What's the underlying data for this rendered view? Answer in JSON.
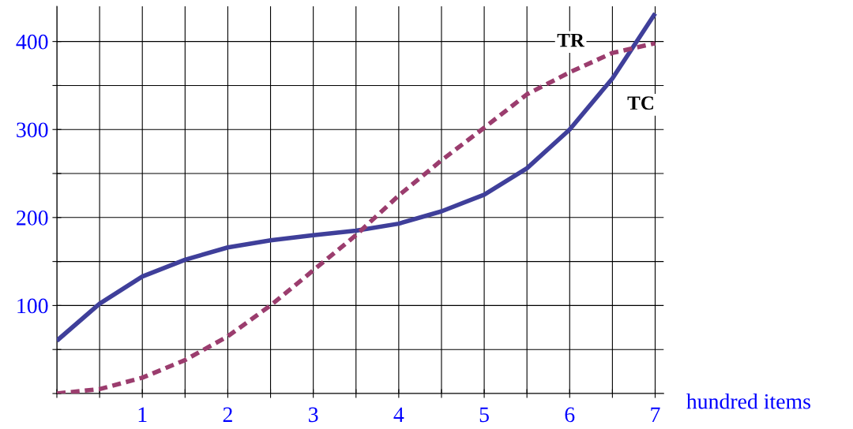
{
  "chart_data": {
    "type": "line",
    "xlabel": "hundred items",
    "x": [
      0,
      0.5,
      1,
      1.5,
      2,
      2.5,
      3,
      3.5,
      4,
      4.5,
      5,
      5.5,
      6,
      6.5,
      7
    ],
    "series": [
      {
        "name": "TC",
        "color": "#3f3f9a",
        "line_style": "solid",
        "values": [
          60,
          102,
          133,
          152,
          166,
          174,
          180,
          185,
          193,
          207,
          226,
          256,
          300,
          358,
          432
        ]
      },
      {
        "name": "TR",
        "color": "#9b3d6e",
        "line_style": "dashed",
        "values": [
          0,
          5,
          18,
          38,
          65,
          100,
          140,
          180,
          225,
          265,
          302,
          340,
          365,
          387,
          398
        ]
      }
    ],
    "xlim": [
      0,
      7.1
    ],
    "ylim": [
      0,
      440
    ],
    "xticks": [
      {
        "value": 0,
        "label": null
      },
      {
        "value": 0.5,
        "label": null
      },
      1,
      {
        "value": 1.5,
        "label": null
      },
      2,
      {
        "value": 2.5,
        "label": null
      },
      3,
      {
        "value": 3.5,
        "label": null
      },
      4,
      {
        "value": 4.5,
        "label": null
      },
      5,
      {
        "value": 5.5,
        "label": null
      },
      6,
      {
        "value": 6.5,
        "label": null
      },
      7
    ],
    "yticks": [
      {
        "value": 0,
        "label": null
      },
      {
        "value": 50,
        "label": null
      },
      100,
      {
        "value": 150,
        "label": null
      },
      200,
      {
        "value": 250,
        "label": null
      },
      300,
      {
        "value": 350,
        "label": null
      },
      400
    ],
    "grid": true,
    "legend": false,
    "marker": "none"
  }
}
